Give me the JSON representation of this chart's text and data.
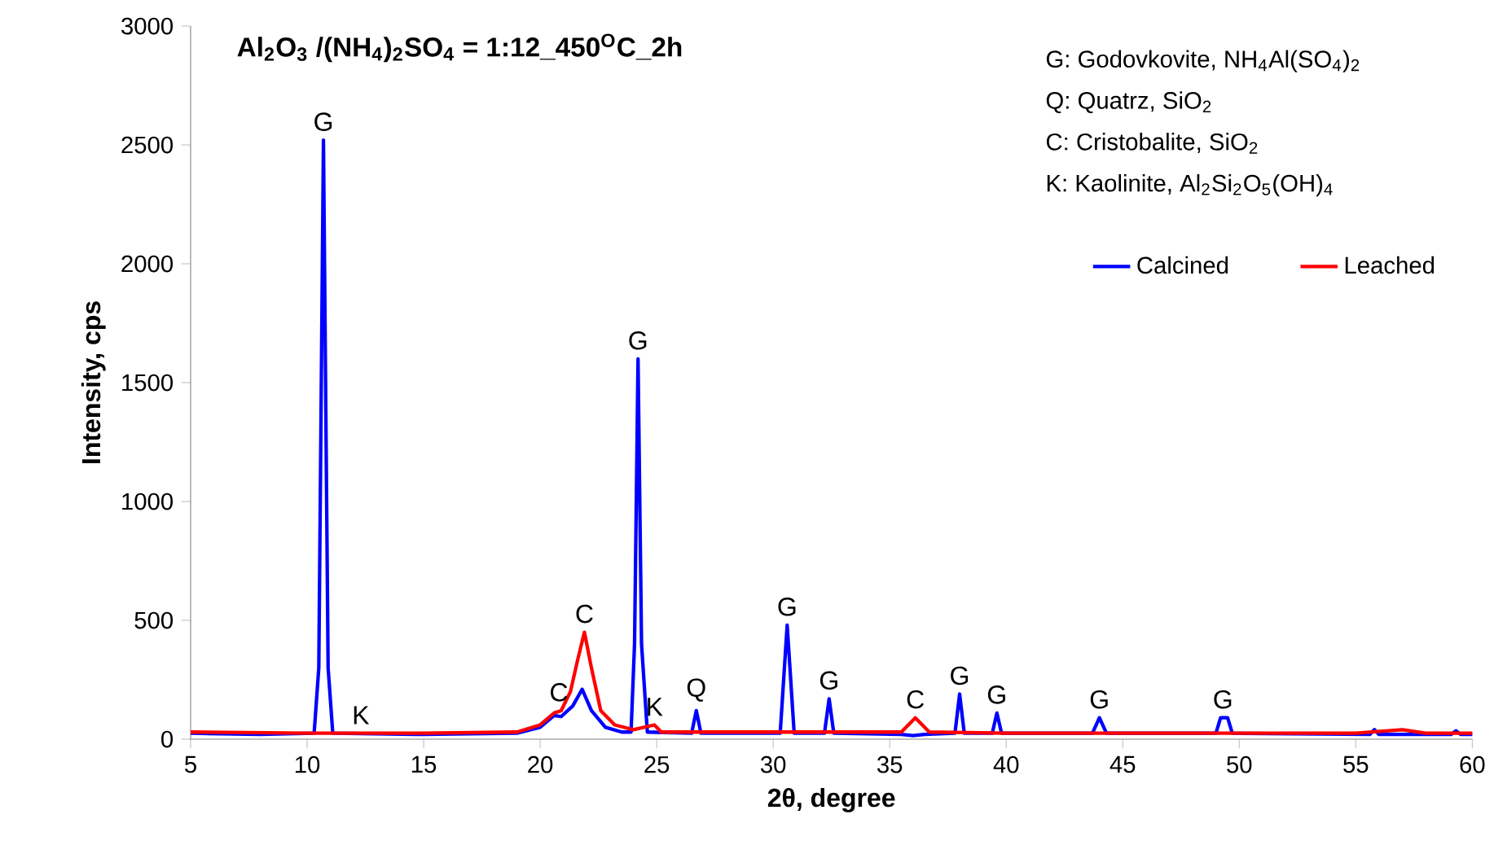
{
  "chart_data": {
    "type": "line",
    "title": "**Al$_{2}$O$_{3}$ /(NH$_{4}$)$_{2}$SO$_{4}$ = 1:12_450$^{O}$C_2h**",
    "xlabel": "2θ, degree",
    "ylabel": "Intensity, cps",
    "xlim": [
      5,
      60
    ],
    "xticks": [
      5,
      10,
      15,
      20,
      25,
      30,
      35,
      40,
      45,
      50,
      55,
      60
    ],
    "ylim": [
      0,
      3000
    ],
    "yticks": [
      0,
      500,
      1000,
      1500,
      2000,
      2500,
      3000
    ],
    "grid": false,
    "legend": "top right",
    "marker": "none",
    "line_style": "solid",
    "series": [
      {
        "name": "Calcined",
        "color": "#0000ff",
        "x": [
          5,
          8,
          10.3,
          10.5,
          10.7,
          10.9,
          11.1,
          15,
          19,
          20,
          20.6,
          20.9,
          21.4,
          21.8,
          22.2,
          22.8,
          23.5,
          23.9,
          24.05,
          24.2,
          24.35,
          24.6,
          26.5,
          26.7,
          26.9,
          30.3,
          30.6,
          30.9,
          32.2,
          32.4,
          32.6,
          35.5,
          36,
          36.5,
          37.8,
          38,
          38.2,
          39.4,
          39.6,
          39.8,
          43.7,
          44,
          44.3,
          49,
          49.2,
          49.5,
          49.7,
          55.6,
          55.8,
          56,
          59.1,
          59.3,
          59.5,
          60
        ],
        "values": [
          25,
          20,
          25,
          300,
          2520,
          300,
          25,
          20,
          25,
          50,
          100,
          95,
          140,
          210,
          120,
          50,
          30,
          30,
          400,
          1600,
          400,
          30,
          25,
          120,
          25,
          25,
          480,
          25,
          25,
          170,
          25,
          20,
          15,
          20,
          25,
          190,
          25,
          25,
          110,
          25,
          25,
          90,
          25,
          25,
          90,
          90,
          25,
          20,
          40,
          20,
          20,
          35,
          20,
          20
        ]
      },
      {
        "name": "Leached",
        "color": "#ff0000",
        "x": [
          5,
          10,
          15,
          19,
          20,
          20.6,
          20.9,
          21.3,
          21.6,
          21.9,
          22.2,
          22.6,
          23.2,
          24,
          24.9,
          25.2,
          30,
          35.5,
          36.1,
          36.7,
          40,
          45,
          50,
          55,
          57,
          58,
          60
        ],
        "values": [
          30,
          25,
          25,
          30,
          60,
          110,
          120,
          200,
          330,
          450,
          300,
          120,
          60,
          40,
          60,
          30,
          30,
          30,
          90,
          30,
          25,
          25,
          25,
          25,
          40,
          25,
          25
        ]
      }
    ],
    "annotations": [
      {
        "text": "G",
        "x": 10.7,
        "y": 2520
      },
      {
        "text": "K",
        "x": 12.3,
        "y": 25
      },
      {
        "text": "C",
        "x": 20.8,
        "y": 120
      },
      {
        "text": "C",
        "x": 21.9,
        "y": 450
      },
      {
        "text": "G",
        "x": 24.2,
        "y": 1600
      },
      {
        "text": "K",
        "x": 24.9,
        "y": 60
      },
      {
        "text": "Q",
        "x": 26.7,
        "y": 120
      },
      {
        "text": "G",
        "x": 30.6,
        "y": 480
      },
      {
        "text": "G",
        "x": 32.4,
        "y": 170
      },
      {
        "text": "C",
        "x": 36.1,
        "y": 90
      },
      {
        "text": "G",
        "x": 38,
        "y": 190
      },
      {
        "text": "G",
        "x": 39.6,
        "y": 110
      },
      {
        "text": "G",
        "x": 44,
        "y": 90
      },
      {
        "text": "G",
        "x": 49.3,
        "y": 90
      },
      "G: Godovkovite, NH$_{4}$Al(SO$_{4}$)$_{2}$",
      "Q: Quatrz, SiO$_{2}$",
      "C: Cristobalite, SiO$_{2}$",
      "K: Kaolinite, Al$_{2}$Si$_{2}$O$_{5}$(OH)$_{4}$"
    ]
  }
}
